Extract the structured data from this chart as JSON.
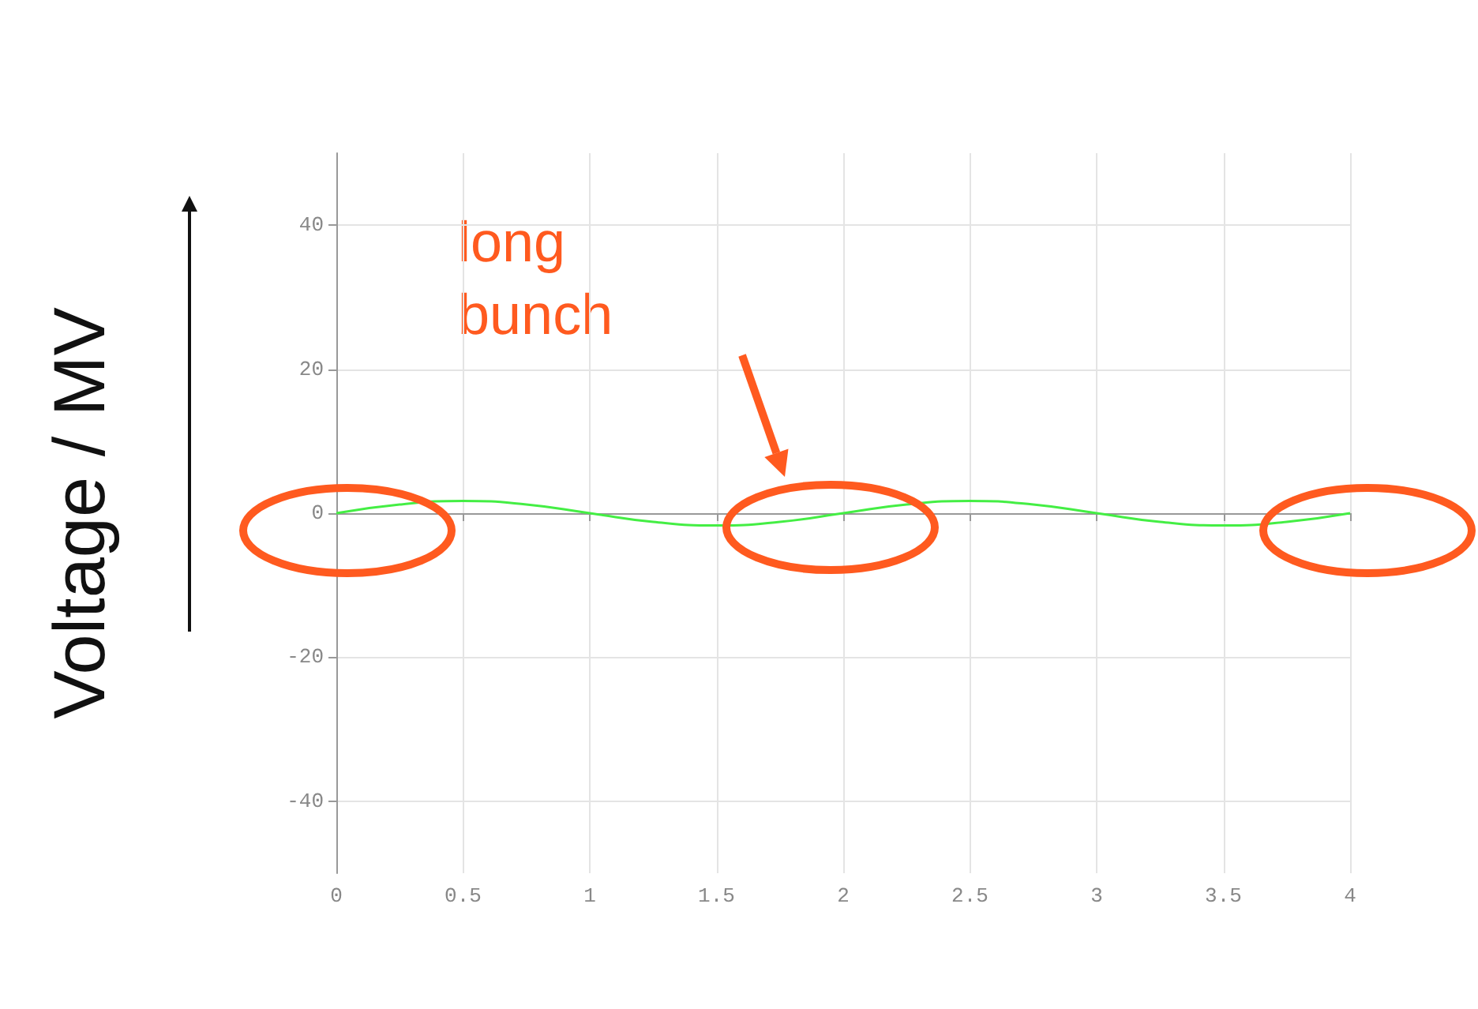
{
  "chart_data": {
    "type": "line",
    "ylabel": "Voltage / MV",
    "x": [
      0,
      0.25,
      0.5,
      0.75,
      1,
      1.25,
      1.5,
      1.75,
      2,
      2.25,
      2.5,
      2.75,
      3,
      3.25,
      3.5,
      3.75,
      4
    ],
    "series": [
      {
        "color": "#44ee44",
        "values": [
          0,
          1.2,
          1.7,
          1.2,
          0,
          -1.2,
          -1.7,
          -1.2,
          0,
          1.2,
          1.7,
          1.2,
          0,
          -1.2,
          -1.7,
          -1.2,
          0
        ]
      }
    ],
    "xlim": [
      0,
      4
    ],
    "xticks": [
      0,
      0.5,
      1,
      1.5,
      2,
      2.5,
      3,
      3.5,
      4
    ],
    "ylim": [
      -50,
      50
    ],
    "yticks": [
      -40,
      -20,
      0,
      20,
      40
    ],
    "grid": true,
    "marker": "none",
    "line_style": "solid",
    "annotations": [
      "long bunch"
    ]
  }
}
